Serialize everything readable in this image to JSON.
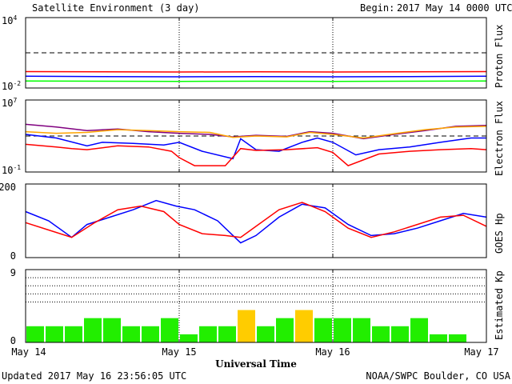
{
  "header": {
    "title": "Satellite Environment (3 day)",
    "begin_label": "Begin:",
    "begin_value": "2017 May 14 0000 UTC"
  },
  "footer": {
    "updated": "Updated 2017 May 16 23:56:05 UTC",
    "credit": "NOAA/SWPC Boulder, CO USA",
    "x_axis_title": "Universal Time"
  },
  "x_axis": {
    "ticks": [
      "May 14",
      "May 15",
      "May 16",
      "May 17"
    ],
    "range_days": [
      0,
      3
    ]
  },
  "colors": {
    "red": "#ff0000",
    "blue": "#0000ff",
    "green": "#00ff00",
    "orange": "#ffa500",
    "purple": "#800080",
    "kp_green": "#22ee00",
    "kp_yellow": "#ffcc00"
  },
  "chart_data": [
    {
      "type": "line",
      "panel": "proton",
      "ylabel": "Proton Flux",
      "y_scale": "log",
      "yticks": [
        {
          "base": "10",
          "exp": "4"
        },
        {
          "base": "10",
          "exp": "-2"
        }
      ],
      "ylim": [
        0.01,
        10000
      ],
      "threshold": 10,
      "series": [
        {
          "color": "red",
          "x": [
            0,
            0.5,
            1,
            1.5,
            2,
            2.5,
            3
          ],
          "y": [
            0.25,
            0.24,
            0.23,
            0.24,
            0.23,
            0.24,
            0.25
          ]
        },
        {
          "color": "blue",
          "x": [
            0,
            0.5,
            1,
            1.5,
            2,
            2.5,
            3
          ],
          "y": [
            0.1,
            0.095,
            0.09,
            0.095,
            0.09,
            0.095,
            0.1
          ]
        },
        {
          "color": "green",
          "x": [
            0,
            0.5,
            1,
            1.5,
            2,
            2.5,
            3
          ],
          "y": [
            0.04,
            0.038,
            0.037,
            0.038,
            0.037,
            0.038,
            0.04
          ]
        }
      ]
    },
    {
      "type": "line",
      "panel": "electron",
      "ylabel": "Electron Flux",
      "y_scale": "log",
      "yticks": [
        {
          "base": "10",
          "exp": "7"
        },
        {
          "base": "10",
          "exp": "-1"
        }
      ],
      "ylim": [
        0.1,
        10000000
      ],
      "threshold": 1000,
      "series": [
        {
          "color": "purple",
          "x": [
            0,
            0.2,
            0.4,
            0.6,
            0.8,
            1.0,
            1.2,
            1.35,
            1.5,
            1.7,
            1.85,
            2.0,
            2.2,
            2.4,
            2.6,
            2.8,
            3.0
          ],
          "y": [
            20000,
            10000,
            4000,
            6000,
            3000,
            2000,
            1500,
            800,
            1200,
            900,
            3000,
            2000,
            500,
            1500,
            4000,
            12000,
            15000
          ]
        },
        {
          "color": "orange",
          "x": [
            0,
            0.2,
            0.4,
            0.6,
            0.8,
            1.0,
            1.2,
            1.35,
            1.5,
            1.7,
            1.85,
            2.0,
            2.2,
            2.4,
            2.6,
            2.8,
            3.0
          ],
          "y": [
            3000,
            2000,
            2500,
            5000,
            4000,
            3000,
            2500,
            700,
            1000,
            800,
            2500,
            1500,
            600,
            1800,
            5000,
            10000,
            12000
          ]
        },
        {
          "color": "blue",
          "x": [
            0,
            0.2,
            0.4,
            0.5,
            0.7,
            0.9,
            1.0,
            1.15,
            1.35,
            1.4,
            1.5,
            1.65,
            1.8,
            1.9,
            2.0,
            2.15,
            2.3,
            2.5,
            2.7,
            2.9,
            3.0
          ],
          "y": [
            1500,
            600,
            80,
            200,
            150,
            100,
            200,
            20,
            3,
            500,
            30,
            20,
            200,
            600,
            200,
            8,
            30,
            60,
            200,
            600,
            600
          ]
        },
        {
          "color": "red",
          "x": [
            0,
            0.2,
            0.3,
            0.4,
            0.6,
            0.8,
            0.95,
            1.0,
            1.1,
            1.3,
            1.4,
            1.5,
            1.7,
            1.9,
            2.0,
            2.1,
            2.3,
            2.5,
            2.7,
            2.9,
            3.0
          ],
          "y": [
            120,
            60,
            40,
            30,
            80,
            60,
            20,
            4,
            0.5,
            0.5,
            40,
            25,
            30,
            50,
            15,
            0.5,
            10,
            20,
            30,
            40,
            30
          ]
        }
      ]
    },
    {
      "type": "line",
      "panel": "hp",
      "ylabel": "GOES Hp",
      "y_scale": "linear",
      "yticks": [
        "200",
        "0"
      ],
      "ylim": [
        0,
        200
      ],
      "series": [
        {
          "color": "blue",
          "x": [
            0,
            0.15,
            0.3,
            0.4,
            0.55,
            0.7,
            0.85,
            0.98,
            1.1,
            1.25,
            1.4,
            1.5,
            1.65,
            1.8,
            1.95,
            2.1,
            2.25,
            2.4,
            2.55,
            2.7,
            2.85,
            3.0
          ],
          "y": [
            125,
            100,
            55,
            90,
            110,
            130,
            155,
            140,
            130,
            100,
            40,
            60,
            110,
            145,
            135,
            90,
            60,
            65,
            80,
            100,
            120,
            110
          ]
        },
        {
          "color": "red",
          "x": [
            0,
            0.15,
            0.3,
            0.45,
            0.6,
            0.75,
            0.9,
            1.0,
            1.15,
            1.3,
            1.4,
            1.5,
            1.65,
            1.8,
            1.95,
            2.1,
            2.25,
            2.4,
            2.55,
            2.7,
            2.85,
            3.0
          ],
          "y": [
            95,
            75,
            55,
            95,
            130,
            140,
            125,
            90,
            65,
            60,
            55,
            85,
            130,
            150,
            125,
            80,
            55,
            70,
            90,
            110,
            115,
            85
          ]
        }
      ]
    },
    {
      "type": "bar",
      "panel": "kp",
      "ylabel": "Estimated Kp",
      "yticks": [
        "9",
        "0"
      ],
      "ylim": [
        0,
        9
      ],
      "bar_hours": 3,
      "values": [
        2,
        2,
        2,
        3,
        3,
        2,
        2,
        3,
        1,
        2,
        2,
        4,
        2,
        3,
        4,
        3,
        3,
        3,
        2,
        2,
        3,
        1,
        1,
        null
      ],
      "yellow_threshold": 4
    }
  ]
}
